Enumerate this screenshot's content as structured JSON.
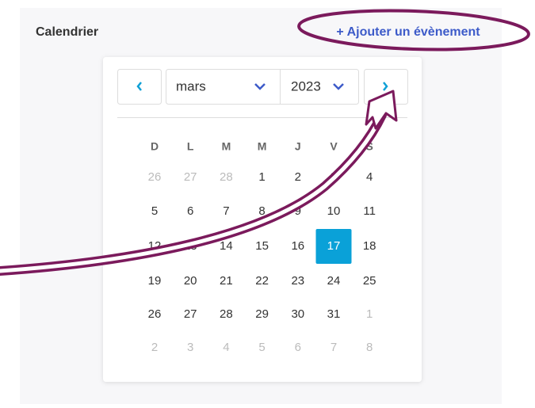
{
  "header": {
    "title": "Calendrier",
    "add_event": "+ Ajouter un évènement"
  },
  "calendar": {
    "month": "mars",
    "year": "2023",
    "weekdays": [
      "D",
      "L",
      "M",
      "M",
      "J",
      "V",
      "S"
    ],
    "weeks": [
      [
        26,
        27,
        28,
        1,
        2,
        3,
        4
      ],
      [
        5,
        6,
        7,
        8,
        9,
        10,
        11
      ],
      [
        12,
        13,
        14,
        15,
        16,
        17,
        18
      ],
      [
        19,
        20,
        21,
        22,
        23,
        24,
        25
      ],
      [
        26,
        27,
        28,
        29,
        30,
        31,
        1
      ],
      [
        2,
        3,
        4,
        5,
        6,
        7,
        8
      ]
    ],
    "selected": 17
  }
}
